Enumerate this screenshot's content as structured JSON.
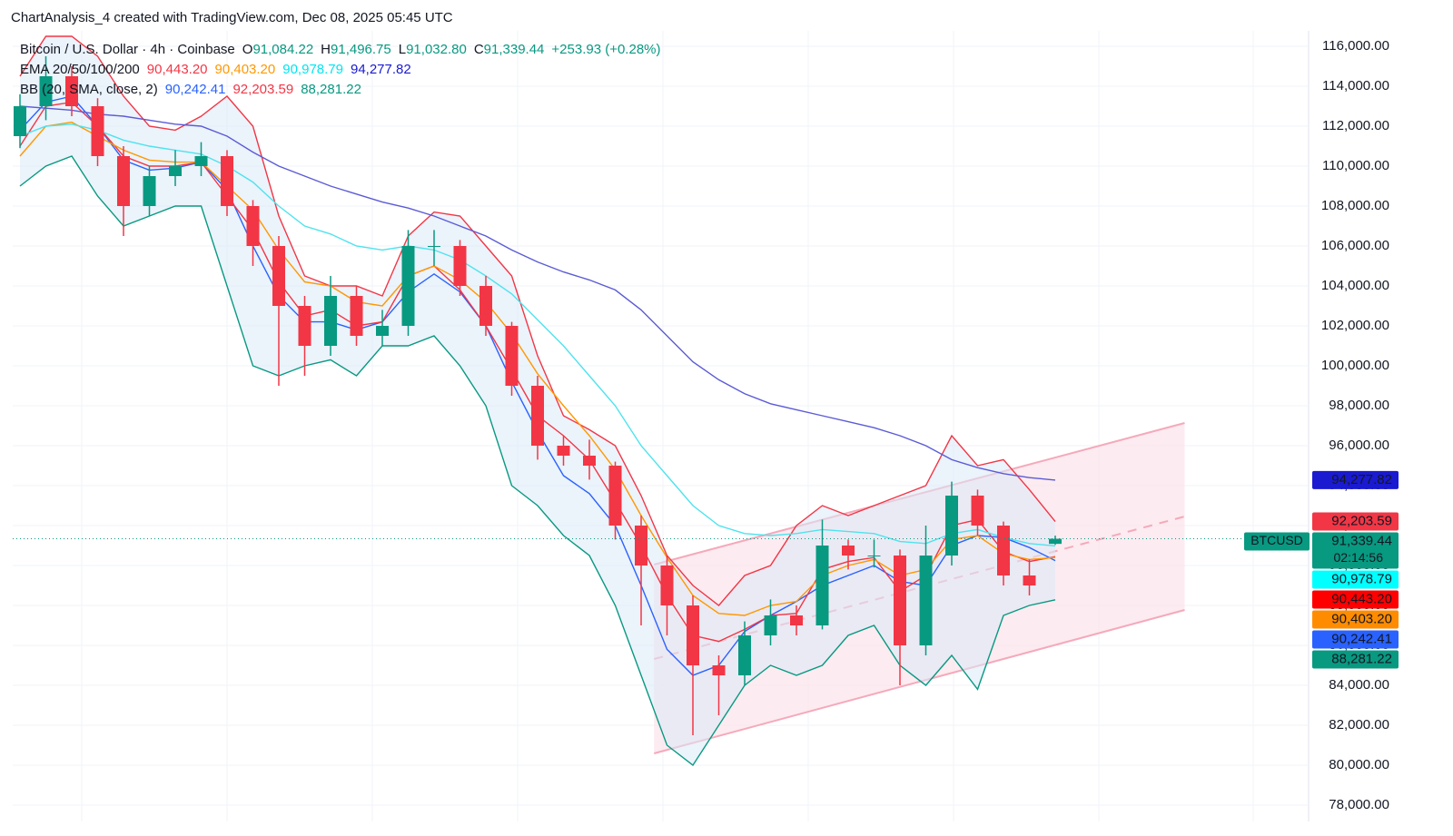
{
  "chart_data": {
    "type": "candlestick",
    "title": "ChartAnalysis_4 created with TradingView.com, Dec 08, 2025 05:45 UTC",
    "legend_rows": [
      {
        "label": "Bitcoin / U.S. Dollar · 4h · Coinbase",
        "items": [
          {
            "prefix": "O",
            "text": "91,084.22",
            "color": "#089981"
          },
          {
            "prefix": "H",
            "text": "91,496.75",
            "color": "#089981"
          },
          {
            "prefix": "L",
            "text": "91,032.80",
            "color": "#089981"
          },
          {
            "prefix": "C",
            "text": "91,339.44",
            "color": "#089981"
          },
          {
            "prefix": "",
            "text": "+253.93 (+0.28%)",
            "color": "#089981"
          }
        ]
      },
      {
        "label": "EMA 20/50/100/200",
        "items": [
          {
            "prefix": "",
            "text": "90,443.20",
            "color": "#f23645"
          },
          {
            "prefix": "",
            "text": "90,403.20",
            "color": "#ff9800"
          },
          {
            "prefix": "",
            "text": "90,978.79",
            "color": "#00e5f0"
          },
          {
            "prefix": "",
            "text": "94,277.82",
            "color": "#1a1ad0"
          }
        ]
      },
      {
        "label": "BB (20, SMA, close, 2)",
        "items": [
          {
            "prefix": "",
            "text": "90,242.41",
            "color": "#2962ff"
          },
          {
            "prefix": "",
            "text": "92,203.59",
            "color": "#f23645"
          },
          {
            "prefix": "",
            "text": "88,281.22",
            "color": "#089981"
          }
        ]
      }
    ],
    "up_color": "#089981",
    "down_color": "#f23645",
    "candles": {
      "open": [
        111500,
        113000,
        114500,
        113000,
        110500,
        108000,
        109500,
        110000,
        110500,
        108000,
        106000,
        103000,
        101000,
        103500,
        101500,
        102000,
        106000,
        106000,
        104000,
        102000,
        99000,
        96000,
        95500,
        95000,
        92000,
        90000,
        88000,
        85000,
        84500,
        86500,
        87500,
        87000,
        91000,
        90500,
        90500,
        86000,
        90500,
        93500,
        92000,
        89500,
        91084.22
      ],
      "high": [
        113600,
        115500,
        115000,
        113400,
        111000,
        110000,
        110800,
        111200,
        110800,
        108300,
        106500,
        103500,
        104500,
        104000,
        102800,
        106800,
        106800,
        106300,
        104500,
        102200,
        99500,
        96500,
        96300,
        95200,
        92500,
        90500,
        88500,
        85500,
        87200,
        88300,
        88000,
        92300,
        91300,
        91300,
        90800,
        92000,
        94200,
        93800,
        92200,
        90300,
        91496.75
      ],
      "low": [
        110900,
        112300,
        112500,
        110000,
        106500,
        107500,
        109000,
        109500,
        107500,
        105000,
        99000,
        99500,
        100500,
        101000,
        101000,
        101500,
        105000,
        103500,
        101500,
        98500,
        95300,
        95000,
        94300,
        91300,
        87000,
        86500,
        81500,
        82500,
        84000,
        86000,
        86500,
        86800,
        89800,
        89900,
        84000,
        85500,
        90000,
        91500,
        89000,
        88500,
        91032.8
      ],
      "close": [
        113000,
        114500,
        113000,
        110500,
        108000,
        109500,
        110000,
        110500,
        108000,
        106000,
        103000,
        101000,
        103500,
        101500,
        102000,
        106000,
        106000,
        104000,
        102000,
        99000,
        96000,
        95500,
        95000,
        92000,
        90000,
        88000,
        85000,
        84500,
        86500,
        87500,
        87000,
        91000,
        90500,
        90500,
        86000,
        90500,
        93500,
        92000,
        89500,
        89000,
        91339.44
      ]
    },
    "bands": {
      "fill": "#dbe9f8",
      "upper": [
        114500,
        116500,
        116500,
        115500,
        113500,
        112000,
        111800,
        112500,
        113500,
        112000,
        107500,
        104500,
        104000,
        104000,
        103500,
        106500,
        107700,
        107500,
        106000,
        104500,
        100500,
        97500,
        96800,
        96000,
        93500,
        90500,
        89000,
        88000,
        89500,
        90000,
        92000,
        93000,
        92500,
        93000,
        93500,
        94000,
        96500,
        95000,
        95300,
        93800,
        92203.59
      ],
      "lower": [
        109000,
        110000,
        110500,
        108500,
        107000,
        107500,
        108000,
        108000,
        104000,
        100000,
        99500,
        100000,
        100300,
        99500,
        101000,
        101000,
        101500,
        100000,
        98000,
        94000,
        93000,
        91500,
        90500,
        88000,
        84500,
        81000,
        80000,
        82000,
        84000,
        85000,
        84500,
        85000,
        86500,
        87000,
        85000,
        84000,
        85500,
        83800,
        87500,
        88000,
        88281.22
      ],
      "upper_color": "#f23645",
      "lower_color": "#089981"
    },
    "series": [
      {
        "color": "#2962ff",
        "values": [
          111800,
          113200,
          113500,
          112000,
          110300,
          109800,
          109900,
          110200,
          108800,
          106000,
          103500,
          102200,
          102200,
          101800,
          102200,
          103700,
          104600,
          103700,
          102000,
          99200,
          96700,
          94500,
          93600,
          92000,
          89000,
          85800,
          84500,
          85000,
          86700,
          87500,
          88200,
          89000,
          89500,
          90000,
          89200,
          89000,
          91000,
          91500,
          91400,
          90900,
          90242.41
        ]
      },
      {
        "color": "#f23645",
        "values": [
          111000,
          113000,
          113200,
          112000,
          110500,
          110000,
          110000,
          110200,
          108500,
          106800,
          104200,
          102500,
          102800,
          102000,
          102200,
          104500,
          105000,
          103800,
          102000,
          99800,
          97500,
          96500,
          95300,
          93200,
          91000,
          88500,
          86500,
          86200,
          86800,
          87500,
          87600,
          89800,
          90200,
          90400,
          88700,
          89500,
          92000,
          92300,
          90700,
          90200,
          90443.2
        ]
      },
      {
        "color": "#ff9800",
        "values": [
          110500,
          112000,
          112200,
          111500,
          110800,
          110300,
          110200,
          110200,
          109000,
          107800,
          105800,
          104200,
          104000,
          103200,
          103000,
          104500,
          105000,
          104300,
          103200,
          101600,
          99600,
          98000,
          96500,
          94800,
          92500,
          90400,
          88500,
          87600,
          87500,
          88000,
          88200,
          89500,
          90000,
          90300,
          89500,
          89800,
          91300,
          91500,
          90600,
          90300,
          90403.2
        ]
      },
      {
        "color": "#4de3ee",
        "values": [
          111500,
          112000,
          112100,
          111800,
          111300,
          111000,
          110800,
          110600,
          110000,
          109200,
          108000,
          107000,
          106600,
          106000,
          105800,
          106000,
          105800,
          105300,
          104500,
          103600,
          102300,
          101000,
          99500,
          98000,
          96000,
          94500,
          93000,
          92000,
          91600,
          91500,
          91600,
          91800,
          91700,
          91600,
          91200,
          91100,
          91600,
          91800,
          91400,
          91100,
          90978.79
        ]
      },
      {
        "color": "#5b5bd6",
        "values": [
          113000,
          112900,
          112800,
          112600,
          112500,
          112300,
          112100,
          112000,
          111500,
          110700,
          110000,
          109500,
          109000,
          108600,
          108200,
          107900,
          107500,
          107000,
          106500,
          105800,
          105200,
          104700,
          104300,
          103800,
          102800,
          101500,
          100200,
          99300,
          98600,
          98100,
          97800,
          97500,
          97200,
          96900,
          96500,
          96000,
          95300,
          94900,
          94600,
          94400,
          94277.82
        ]
      }
    ],
    "channel": {
      "x": [
        24.5,
        45
      ],
      "upper": [
        90046,
        97136
      ],
      "lower": [
        80590,
        87773
      ],
      "color": "#f5a9bb",
      "fill": "#fbe3ea"
    },
    "ylim": [
      77500,
      116500
    ],
    "yticks": [
      {
        "value": 78000,
        "label": "78,000.00"
      },
      {
        "value": 80000,
        "label": "80,000.00"
      },
      {
        "value": 82000,
        "label": "82,000.00"
      },
      {
        "value": 84000,
        "label": "84,000.00"
      },
      {
        "value": 86000,
        "label": "86,000.00"
      },
      {
        "value": 88000,
        "label": "88,000.00"
      },
      {
        "value": 90000,
        "label": "90,000.00"
      },
      {
        "value": 92000,
        "label": "92,000.00"
      },
      {
        "value": 94000,
        "label": "94,000.00"
      },
      {
        "value": 96000,
        "label": "96,000.00"
      },
      {
        "value": 98000,
        "label": "98,000.00"
      },
      {
        "value": 100000,
        "label": "100,000.00"
      },
      {
        "value": 102000,
        "label": "102,000.00"
      },
      {
        "value": 104000,
        "label": "104,000.00"
      },
      {
        "value": 106000,
        "label": "106,000.00"
      },
      {
        "value": 108000,
        "label": "108,000.00"
      },
      {
        "value": 110000,
        "label": "110,000.00"
      },
      {
        "value": 112000,
        "label": "112,000.00"
      },
      {
        "value": 114000,
        "label": "114,000.00"
      },
      {
        "value": 116000,
        "label": "116,000.00"
      }
    ],
    "grid": true,
    "badges": [
      {
        "value": 94277.82,
        "text": "94,277.82",
        "color": "#1a1ad0",
        "text_color": "#ffffff"
      },
      {
        "value": 92203.59,
        "text": "92,203.59",
        "color": "#f23645",
        "text_color": "#ffffff"
      },
      {
        "value": 91339.44,
        "text": "91,339.44",
        "tag": "BTCUSD",
        "sub": "02:14:56",
        "color": "#089981",
        "text_color": "#ffffff"
      },
      {
        "value": 90978.79,
        "text": "90,978.79",
        "color": "#00ffff",
        "text_color": "#000000"
      },
      {
        "value": 90443.2,
        "text": "90,443.20",
        "color": "#ff0000",
        "text_color": "#ffffff"
      },
      {
        "value": 90403.2,
        "text": "90,403.20",
        "color": "#ff8c00",
        "text_color": "#ffffff"
      },
      {
        "value": 90242.41,
        "text": "90,242.41",
        "color": "#2962ff",
        "text_color": "#ffffff"
      },
      {
        "value": 88281.22,
        "text": "88,281.22",
        "color": "#089981",
        "text_color": "#ffffff"
      }
    ]
  }
}
